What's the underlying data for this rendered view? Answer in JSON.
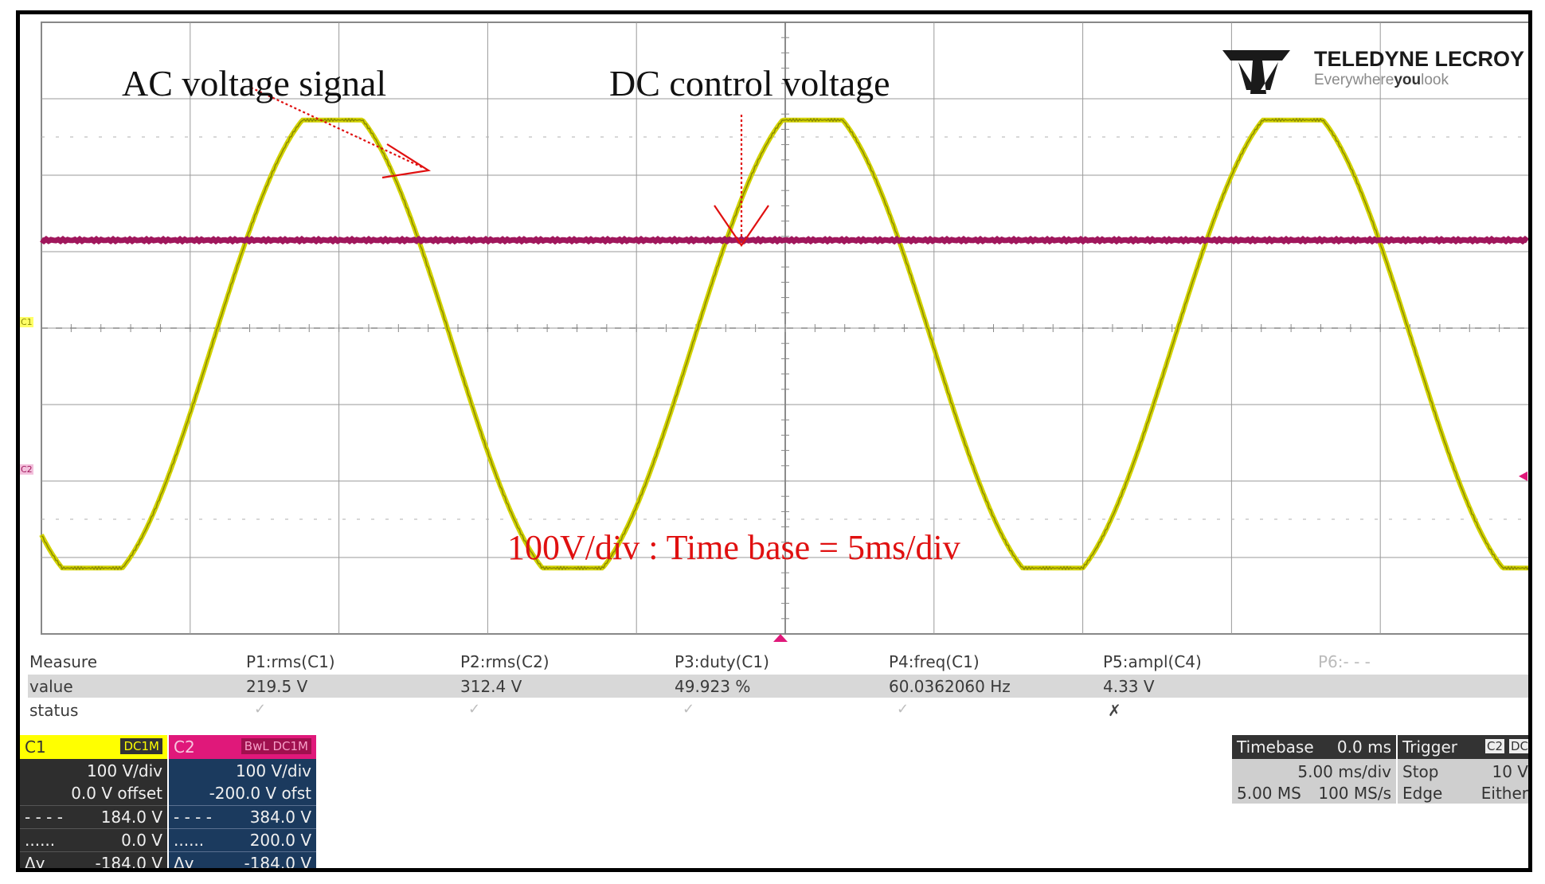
{
  "annotations": {
    "ac_label": "AC voltage signal",
    "dc_label": "DC control voltage",
    "scale_label": "100V/div : Time base = 5ms/div"
  },
  "logo": {
    "brand": "TELEDYNE LECROY",
    "tagline_plain": "Everywhere",
    "tagline_bold": "you",
    "tagline_end": "look"
  },
  "side_markers": {
    "c1": "C1",
    "c2": "C2"
  },
  "colors": {
    "c1": "#d2d200",
    "c1_header": "#ffff00",
    "c2": "#a0175c",
    "c2_header": "#e0187a",
    "c2_panel": "#1b3a5e",
    "grid": "#9a9a9a",
    "annotation_red": "#e01010",
    "trigger_mark": "#e0187a"
  },
  "measure": {
    "label": "Measure",
    "value_label": "value",
    "status_label": "status",
    "params": [
      {
        "name": "P1:rms(C1)",
        "value": "219.5 V",
        "status": "✓"
      },
      {
        "name": "P2:rms(C2)",
        "value": "312.4 V",
        "status": "✓"
      },
      {
        "name": "P3:duty(C1)",
        "value": "49.923 %",
        "status": "✓"
      },
      {
        "name": "P4:freq(C1)",
        "value": "60.0362060 Hz",
        "status": "✓"
      },
      {
        "name": "P5:ampl(C4)",
        "value": "4.33 V",
        "status": "✗"
      },
      {
        "name": "P6:- - -",
        "value": "",
        "status": ""
      }
    ]
  },
  "channels": [
    {
      "name": "C1",
      "coupling": "DC1M",
      "vdiv": "100 V/div",
      "offset": "0.0 V offset",
      "cursor1_sym": "- - - -",
      "cursor1": "184.0 V",
      "cursor2_sym": "......",
      "cursor2": "0.0 V",
      "dy_label": "Δy",
      "dy": "-184.0 V"
    },
    {
      "name": "C2",
      "coupling": "BwL DC1M",
      "vdiv": "100 V/div",
      "offset": "-200.0 V ofst",
      "cursor1_sym": "- - - -",
      "cursor1": "384.0 V",
      "cursor2_sym": "......",
      "cursor2": "200.0 V",
      "dy_label": "Δy",
      "dy": "-184.0 V"
    }
  ],
  "timebase": {
    "label": "Timebase",
    "delay": "0.0 ms",
    "per_div": "5.00 ms/div",
    "samples": "5.00 MS",
    "rate": "100 MS/s"
  },
  "trigger": {
    "label": "Trigger",
    "source": "C2",
    "coupling": "DC",
    "mode": "Stop",
    "level": "10 V",
    "type": "Edge",
    "slope": "Either"
  }
}
